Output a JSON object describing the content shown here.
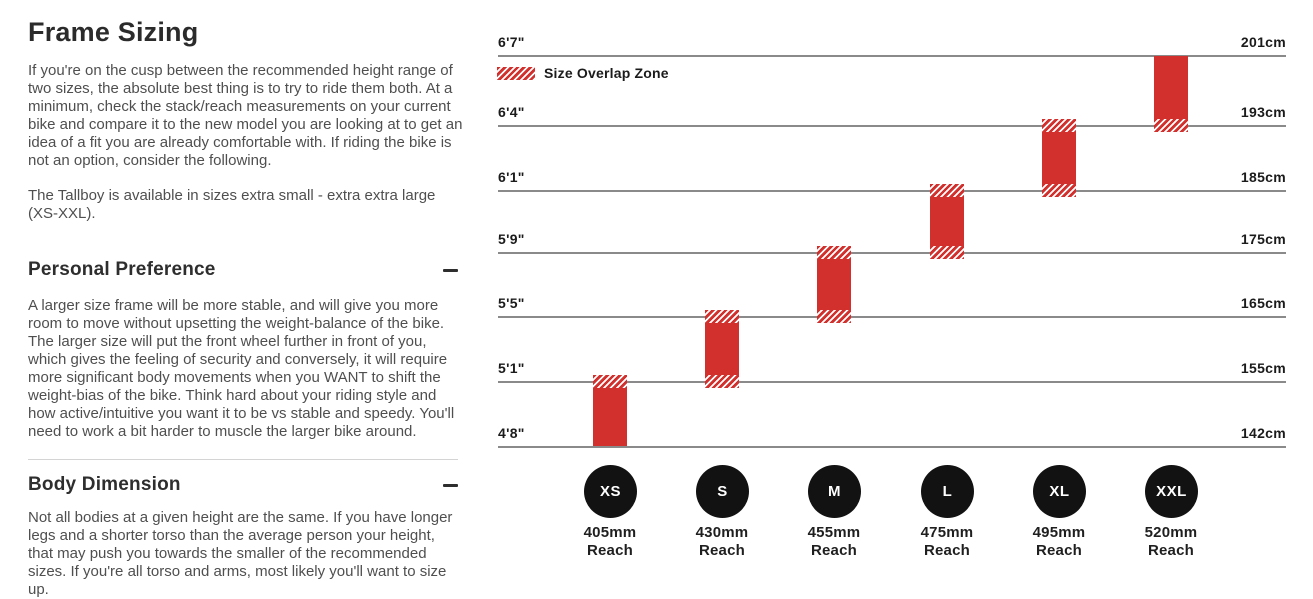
{
  "page": {
    "title": "Frame Sizing"
  },
  "intro": {
    "paragraph1": "If you're on the cusp between the recommended height range of two sizes, the absolute best thing is to try to ride them both. At a minimum, check the stack/reach measurements on your current bike and compare it to the new model you are looking at to get an idea of a fit you are already comfortable with. If riding the bike is not an option, consider the following.",
    "paragraph2": "The Tallboy is available in sizes extra small - extra extra large (XS-XXL)."
  },
  "sections": [
    {
      "heading": "Personal Preference",
      "toggle_icon": "minus-icon",
      "body": "A larger size frame will be more stable, and will give you more room to move without upsetting the weight-balance of the bike. The larger size will put the front wheel further in front of you, which gives the feeling of security and conversely, it will require more significant body movements when you WANT to shift the weight-bias of the bike. Think hard about your riding style and how active/intuitive you want it to be vs stable and speedy. You'll need to work a bit harder to muscle the larger bike around."
    },
    {
      "heading": "Body Dimension",
      "toggle_icon": "minus-icon",
      "body": "Not all bodies at a given height are the same. If you have longer legs and a shorter torso than the average person your height, that may push you towards the smaller of the recommended sizes. If you're all torso and arms, most likely you'll want to size up."
    }
  ],
  "chart_data": {
    "type": "bar",
    "title": "Frame size vs rider height",
    "legend": {
      "label": "Size Overlap Zone",
      "swatch": "red-diagonal-hatch"
    },
    "colors": {
      "bar_red": "#d2302d",
      "badge_black": "#121212",
      "gridline_gray": "#8a8a8a"
    },
    "y_axis_left_unit": "feet/inches",
    "y_axis_right_unit": "cm",
    "height_rows": [
      {
        "imperial": "6'7\"",
        "metric": "201cm"
      },
      {
        "imperial": "6'4\"",
        "metric": "193cm"
      },
      {
        "imperial": "6'1\"",
        "metric": "185cm"
      },
      {
        "imperial": "5'9\"",
        "metric": "175cm"
      },
      {
        "imperial": "5'5\"",
        "metric": "165cm"
      },
      {
        "imperial": "5'1\"",
        "metric": "155cm"
      },
      {
        "imperial": "4'8\"",
        "metric": "142cm"
      }
    ],
    "sizes": [
      {
        "label": "XS",
        "reach": "405mm",
        "reach_caption": "Reach",
        "fits_height": "4'8\"-5'1\"",
        "fits_cm": "142cm-155cm",
        "band_top_row": 5,
        "band_bottom_row": 6,
        "overlap_top": true,
        "overlap_bottom": false
      },
      {
        "label": "S",
        "reach": "430mm",
        "reach_caption": "Reach",
        "fits_height": "5'1\"-5'5\"",
        "fits_cm": "155cm-165cm",
        "band_top_row": 4,
        "band_bottom_row": 5,
        "overlap_top": true,
        "overlap_bottom": true
      },
      {
        "label": "M",
        "reach": "455mm",
        "reach_caption": "Reach",
        "fits_height": "5'5\"-5'9\"",
        "fits_cm": "165cm-175cm",
        "band_top_row": 3,
        "band_bottom_row": 4,
        "overlap_top": true,
        "overlap_bottom": true
      },
      {
        "label": "L",
        "reach": "475mm",
        "reach_caption": "Reach",
        "fits_height": "5'9\"-6'1\"",
        "fits_cm": "175cm-185cm",
        "band_top_row": 2,
        "band_bottom_row": 3,
        "overlap_top": true,
        "overlap_bottom": true
      },
      {
        "label": "XL",
        "reach": "495mm",
        "reach_caption": "Reach",
        "fits_height": "6'1\"-6'4\"",
        "fits_cm": "185cm-193cm",
        "band_top_row": 1,
        "band_bottom_row": 2,
        "overlap_top": true,
        "overlap_bottom": true
      },
      {
        "label": "XXL",
        "reach": "520mm",
        "reach_caption": "Reach",
        "fits_height": "6'4\"-6'7\"",
        "fits_cm": "193cm-201cm",
        "band_top_row": 0,
        "band_bottom_row": 1,
        "overlap_top": false,
        "overlap_bottom": true
      }
    ]
  }
}
